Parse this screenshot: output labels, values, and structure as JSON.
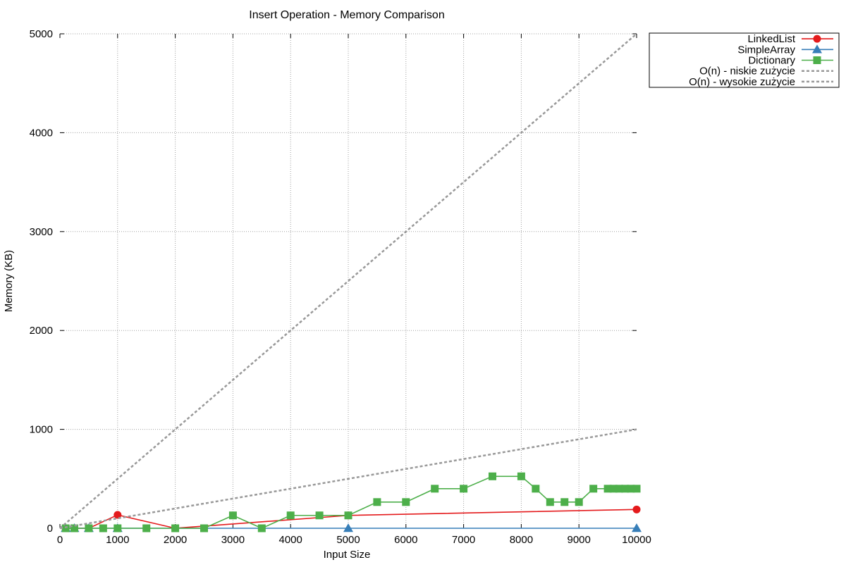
{
  "chart_data": {
    "type": "line",
    "title": "Insert Operation - Memory Comparison",
    "xlabel": "Input Size",
    "ylabel": "Memory (KB)",
    "xlim": [
      0,
      10000
    ],
    "ylim": [
      0,
      5000
    ],
    "x_ticks": [
      0,
      1000,
      2000,
      3000,
      4000,
      5000,
      6000,
      7000,
      8000,
      9000,
      10000
    ],
    "y_ticks": [
      0,
      1000,
      2000,
      3000,
      4000,
      5000
    ],
    "grid": true,
    "legend_position": "outside-top-right",
    "series": [
      {
        "name": "LinkedList",
        "color": "#e41a1c",
        "marker": "circle",
        "x": [
          100,
          250,
          500,
          1000,
          2000,
          5000,
          10000
        ],
        "y": [
          0,
          0,
          0,
          135,
          0,
          130,
          190
        ]
      },
      {
        "name": "SimpleArray",
        "color": "#377eb8",
        "marker": "triangle",
        "x": [
          100,
          250,
          500,
          1000,
          5000,
          10000
        ],
        "y": [
          0,
          0,
          0,
          0,
          0,
          0
        ]
      },
      {
        "name": "Dictionary",
        "color": "#4daf4a",
        "marker": "square",
        "x": [
          100,
          250,
          500,
          750,
          1000,
          1500,
          2000,
          2500,
          3000,
          3500,
          4000,
          4500,
          5000,
          5500,
          6000,
          6500,
          7000,
          7500,
          8000,
          8250,
          8500,
          8750,
          9000,
          9250,
          9500,
          9600,
          9700,
          9800,
          9900,
          10000
        ],
        "y": [
          0,
          0,
          0,
          0,
          0,
          0,
          0,
          0,
          130,
          0,
          130,
          130,
          130,
          265,
          265,
          400,
          400,
          525,
          525,
          400,
          265,
          265,
          265,
          400,
          400,
          400,
          400,
          400,
          400,
          400
        ]
      },
      {
        "name": "O(n) - niskie zużycie",
        "color": "#999999",
        "dashed": true,
        "x": [
          0,
          10000
        ],
        "y": [
          0,
          1000
        ]
      },
      {
        "name": "O(n) - wysokie zużycie",
        "color": "#999999",
        "dashed": true,
        "x": [
          0,
          10000
        ],
        "y": [
          0,
          5000
        ]
      }
    ]
  }
}
